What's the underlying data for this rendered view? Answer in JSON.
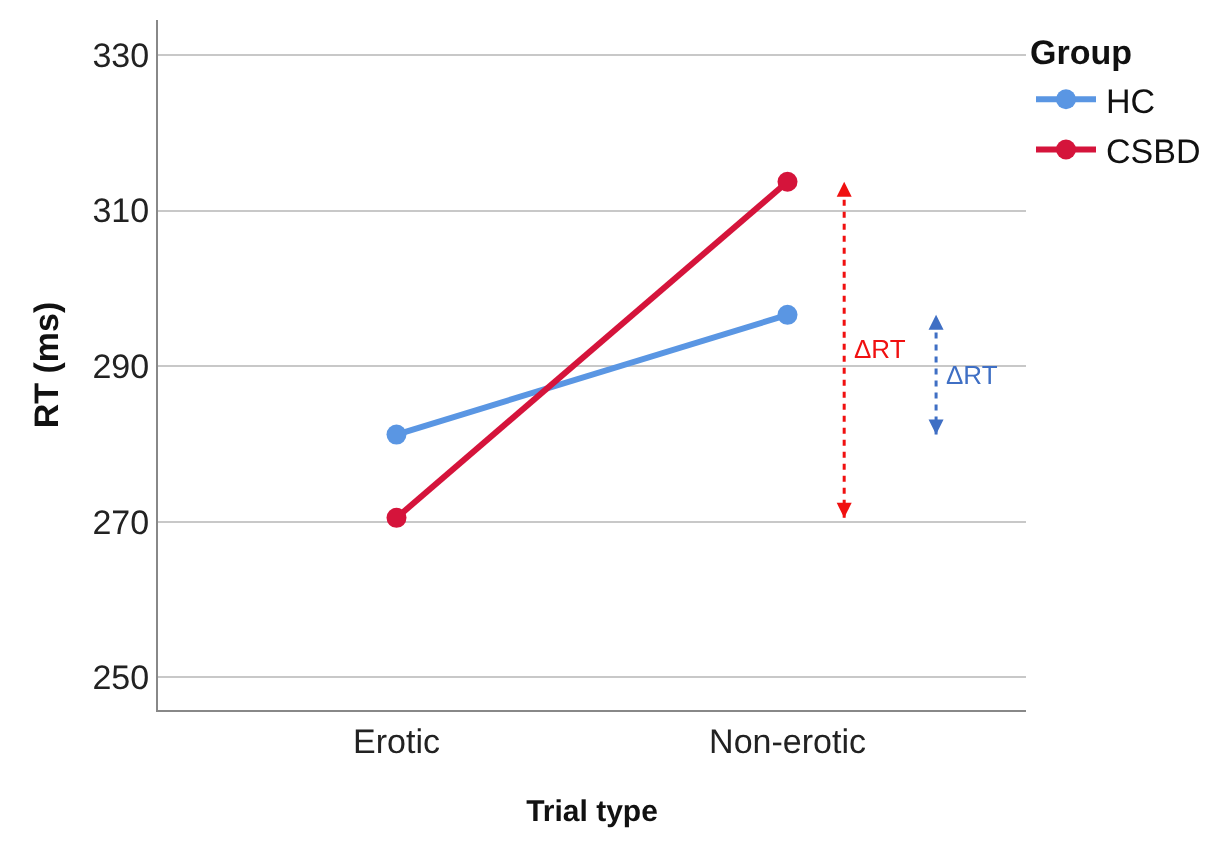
{
  "chart_data": {
    "type": "line",
    "xlabel": "Trial type",
    "ylabel": "RT (ms)",
    "legend_title": "Group",
    "categories": [
      "Erotic",
      "Non-erotic"
    ],
    "series": [
      {
        "name": "HC",
        "color": "#5a96e3",
        "values": [
          281.2,
          296.6
        ]
      },
      {
        "name": "CSBD",
        "color": "#d5143b",
        "values": [
          270.5,
          313.7
        ]
      }
    ],
    "ylim": [
      245.8,
      334.5
    ],
    "yticks": [
      250,
      270,
      290,
      310,
      330
    ],
    "grid": "y",
    "legend": "top right",
    "marker": "circle",
    "line_style": "solid",
    "annotations": [
      "ΔRT",
      "ΔRT"
    ]
  }
}
